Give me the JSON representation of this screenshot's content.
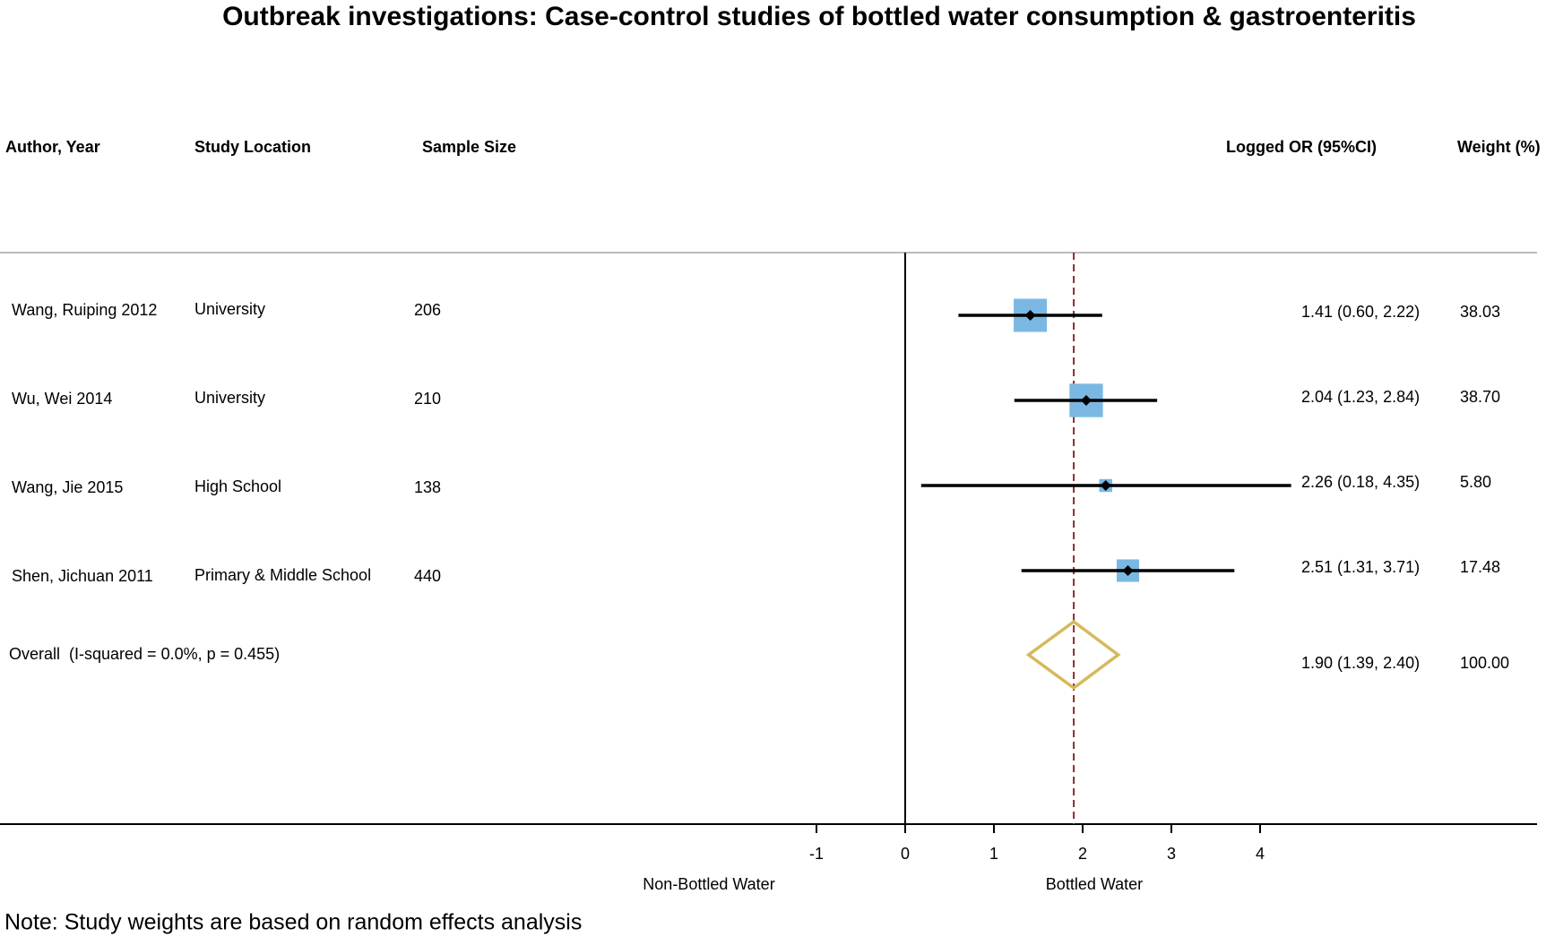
{
  "chart_data": {
    "type": "forest",
    "title": "Outbreak investigations: Case-control studies of bottled water consumption & gastroenteritis",
    "headers": {
      "author": "Author, Year",
      "location": "Study Location",
      "sample": "Sample Size",
      "estimate": "Logged OR (95%CI)",
      "weight": "Weight (%)"
    },
    "categories": [
      "Wang, Ruiping 2012",
      "Wu, Wei 2014",
      "Wang, Jie 2015",
      "Shen, Jichuan 2011"
    ],
    "locations": [
      "University",
      "University",
      "High School",
      "Primary & Middle School"
    ],
    "sample_sizes": [
      206,
      210,
      138,
      440
    ],
    "values": [
      1.41,
      2.04,
      2.26,
      2.51
    ],
    "lower": [
      0.6,
      1.23,
      0.18,
      1.31
    ],
    "upper": [
      2.22,
      2.84,
      4.35,
      3.71
    ],
    "value_labels": [
      "1.41 (0.60, 2.22)",
      "2.04 (1.23, 2.84)",
      "2.26 (0.18, 4.35)",
      "2.51 (1.31, 3.71)"
    ],
    "weights": [
      38.03,
      38.7,
      5.8,
      17.48
    ],
    "weight_labels": [
      "38.03",
      "38.70",
      "5.80",
      "17.48"
    ],
    "overall": {
      "label": "Overall  (I-squared = 0.0%, p = 0.455)",
      "value": 1.9,
      "lower": 1.39,
      "upper": 2.4,
      "value_label": "1.90 (1.39, 2.40)",
      "weight": 100,
      "weight_label": "100.00"
    },
    "xlim": [
      -1,
      4
    ],
    "xticks": [
      -1,
      0,
      1,
      2,
      3,
      4
    ],
    "left_label": "Non-Bottled Water",
    "right_label": "Bottled Water",
    "note": "Note: Study weights are based on random effects analysis",
    "box_color": "#7ab8e3",
    "diamond_color": "#d6b95c",
    "reference_color": "#8b2a2a"
  }
}
